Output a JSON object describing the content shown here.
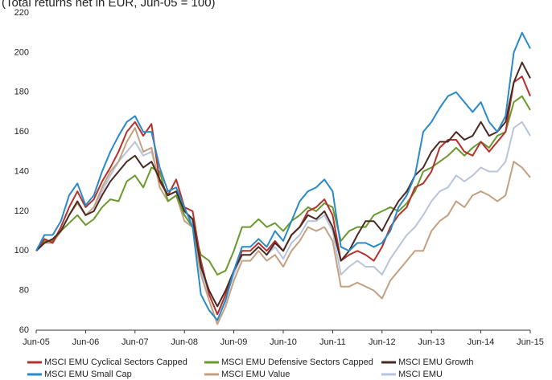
{
  "chart_data": {
    "type": "line",
    "subtitle": "(Total returns net in EUR, Jun-05 = 100)",
    "x": [
      "Jun-05",
      "Aug-05",
      "Oct-05",
      "Dec-05",
      "Feb-06",
      "Apr-06",
      "Jun-06",
      "Aug-06",
      "Oct-06",
      "Dec-06",
      "Feb-07",
      "Apr-07",
      "Jun-07",
      "Aug-07",
      "Oct-07",
      "Dec-07",
      "Feb-08",
      "Apr-08",
      "Jun-08",
      "Aug-08",
      "Oct-08",
      "Dec-08",
      "Feb-09",
      "Apr-09",
      "Jun-09",
      "Aug-09",
      "Oct-09",
      "Dec-09",
      "Feb-10",
      "Apr-10",
      "Jun-10",
      "Aug-10",
      "Oct-10",
      "Dec-10",
      "Feb-11",
      "Apr-11",
      "Jun-11",
      "Aug-11",
      "Oct-11",
      "Dec-11",
      "Feb-12",
      "Apr-12",
      "Jun-12",
      "Aug-12",
      "Oct-12",
      "Dec-12",
      "Feb-13",
      "Apr-13",
      "Jun-13",
      "Aug-13",
      "Oct-13",
      "Dec-13",
      "Feb-14",
      "Apr-14",
      "Jun-14",
      "Aug-14",
      "Oct-14",
      "Dec-14",
      "Feb-15",
      "Apr-15",
      "Jun-15"
    ],
    "xticks": [
      "Jun-05",
      "Jun-06",
      "Jun-07",
      "Jun-08",
      "Jun-09",
      "Jun-10",
      "Jun-11",
      "Jun-12",
      "Jun-13",
      "Jun-14",
      "Jun-15"
    ],
    "ylim": [
      60,
      220
    ],
    "yticks": [
      60,
      80,
      100,
      120,
      140,
      160,
      180,
      200,
      220
    ],
    "grid": false,
    "series": [
      {
        "name": "MSCI EMU Cyclical Sectors Capped",
        "color": "#b5322c",
        "values": [
          100,
          106,
          104,
          112,
          122,
          130,
          122,
          126,
          135,
          142,
          150,
          160,
          165,
          158,
          164,
          135,
          128,
          136,
          122,
          120,
          95,
          78,
          68,
          78,
          90,
          100,
          100,
          104,
          100,
          105,
          100,
          108,
          112,
          120,
          122,
          126,
          118,
          95,
          98,
          100,
          98,
          95,
          102,
          112,
          118,
          122,
          132,
          134,
          140,
          152,
          156,
          156,
          150,
          148,
          155,
          150,
          155,
          160,
          185,
          188,
          178
        ]
      },
      {
        "name": "MSCI EMU Defensive Sectors Capped",
        "color": "#6a9a2e",
        "values": [
          100,
          105,
          105,
          110,
          114,
          118,
          113,
          116,
          122,
          126,
          125,
          135,
          138,
          132,
          142,
          140,
          125,
          128,
          118,
          112,
          98,
          95,
          88,
          90,
          100,
          112,
          112,
          116,
          112,
          114,
          110,
          115,
          118,
          122,
          120,
          124,
          122,
          105,
          110,
          112,
          112,
          118,
          120,
          122,
          120,
          124,
          130,
          140,
          142,
          145,
          148,
          152,
          148,
          152,
          155,
          152,
          158,
          160,
          175,
          178,
          171
        ]
      },
      {
        "name": "MSCI EMU Growth",
        "color": "#4a2a22",
        "values": [
          100,
          104,
          106,
          110,
          118,
          125,
          118,
          120,
          128,
          135,
          140,
          145,
          148,
          142,
          145,
          136,
          128,
          130,
          120,
          116,
          92,
          80,
          72,
          80,
          90,
          98,
          98,
          102,
          98,
          104,
          100,
          108,
          112,
          118,
          116,
          120,
          112,
          95,
          100,
          108,
          115,
          115,
          110,
          118,
          125,
          130,
          138,
          142,
          150,
          155,
          155,
          160,
          156,
          158,
          165,
          158,
          160,
          165,
          185,
          195,
          187
        ]
      },
      {
        "name": "MSCI EMU Small Cap",
        "color": "#2a8ac8",
        "values": [
          100,
          108,
          108,
          115,
          128,
          134,
          123,
          128,
          140,
          150,
          158,
          165,
          168,
          160,
          160,
          142,
          130,
          132,
          122,
          112,
          78,
          70,
          65,
          75,
          90,
          102,
          102,
          106,
          102,
          110,
          105,
          115,
          125,
          130,
          132,
          136,
          130,
          102,
          100,
          104,
          104,
          102,
          104,
          110,
          122,
          128,
          138,
          160,
          165,
          172,
          178,
          180,
          175,
          170,
          175,
          165,
          160,
          168,
          200,
          210,
          202
        ]
      },
      {
        "name": "MSCI EMU Value",
        "color": "#c4a080",
        "values": [
          100,
          104,
          104,
          110,
          118,
          124,
          118,
          122,
          132,
          140,
          145,
          155,
          162,
          150,
          152,
          132,
          125,
          128,
          115,
          112,
          88,
          75,
          63,
          72,
          85,
          95,
          95,
          100,
          95,
          98,
          92,
          100,
          105,
          112,
          110,
          112,
          105,
          82,
          82,
          84,
          82,
          80,
          76,
          85,
          90,
          95,
          100,
          100,
          110,
          115,
          118,
          125,
          122,
          128,
          130,
          128,
          125,
          128,
          145,
          142,
          137
        ]
      },
      {
        "name": "MSCI EMU",
        "color": "#b7c4dc",
        "values": [
          100,
          104,
          105,
          110,
          118,
          124,
          118,
          122,
          130,
          138,
          145,
          150,
          155,
          148,
          150,
          135,
          128,
          130,
          120,
          115,
          90,
          78,
          68,
          76,
          88,
          98,
          98,
          102,
          98,
          102,
          96,
          104,
          108,
          115,
          115,
          118,
          110,
          88,
          92,
          95,
          92,
          92,
          88,
          96,
          102,
          108,
          112,
          118,
          125,
          130,
          132,
          138,
          135,
          138,
          142,
          140,
          140,
          145,
          162,
          165,
          158
        ]
      }
    ]
  }
}
